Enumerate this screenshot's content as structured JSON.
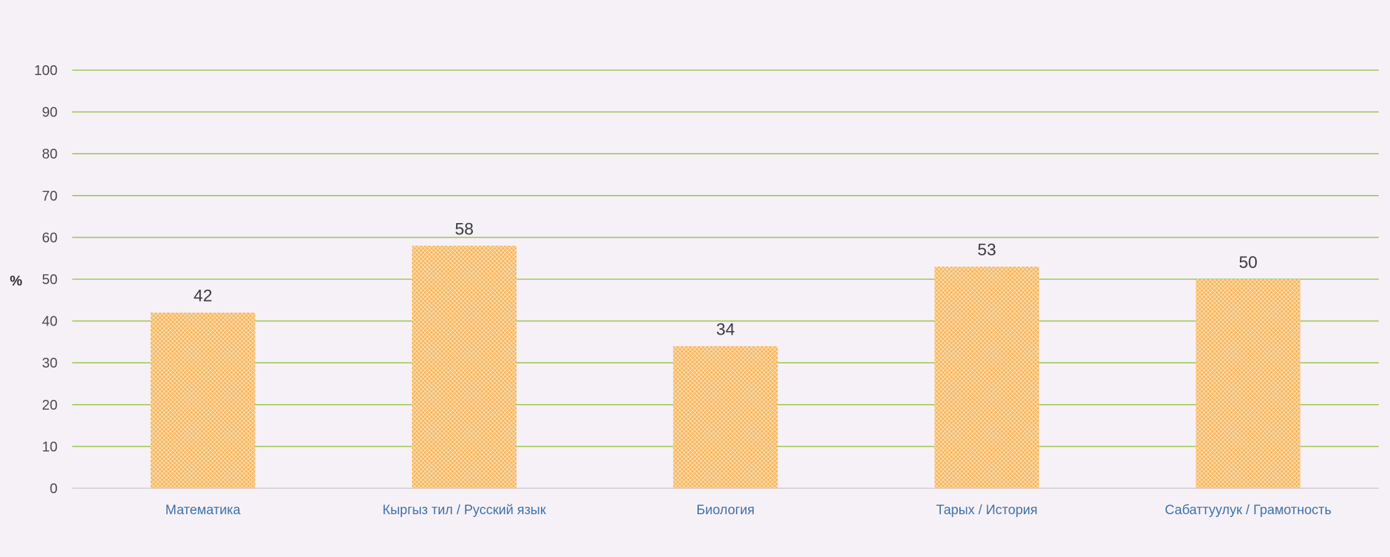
{
  "chart_data": {
    "type": "bar",
    "title": "",
    "xlabel": "",
    "ylabel": "%",
    "ylim": [
      0,
      100
    ],
    "yticks": [
      0,
      10,
      20,
      30,
      40,
      50,
      60,
      70,
      80,
      90,
      100
    ],
    "grid": true,
    "legend": "none",
    "categories": [
      "Математика",
      "Кыргыз тил / Русский язык",
      "Биология",
      "Тарых / История",
      "Сабаттуулук / Грамотность"
    ],
    "values": [
      42,
      58,
      34,
      53,
      50
    ],
    "data_labels": [
      "42",
      "58",
      "34",
      "53",
      "50"
    ],
    "colors": {
      "bar": "#f8b45c",
      "bar_pattern": "#fde2b8",
      "grid": "#9cc655",
      "tick_text": "#4a4a4a",
      "category_text": "#3d72a8",
      "background": "#f6f1f7"
    }
  }
}
